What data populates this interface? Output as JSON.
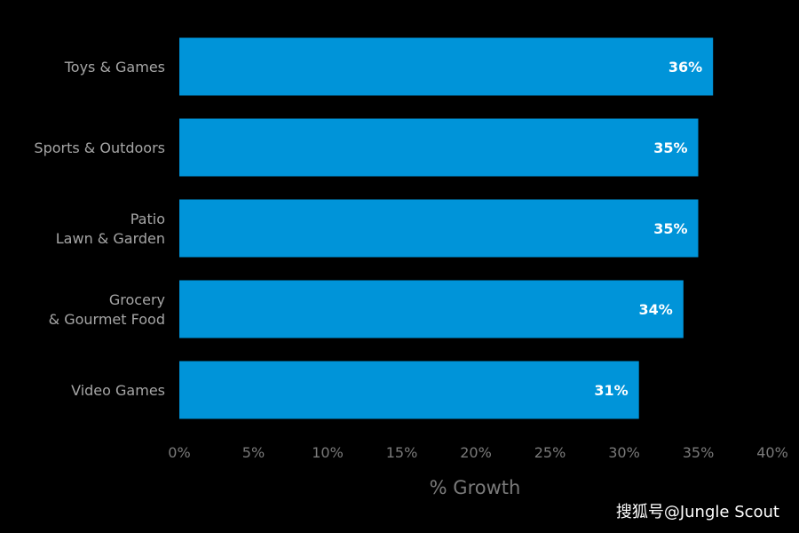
{
  "chart_data": {
    "type": "bar",
    "orientation": "horizontal",
    "categories": [
      "Toys & Games",
      "Sports & Outdoors",
      "Patio\nLawn & Garden",
      "Grocery\n& Gourmet Food",
      "Video Games"
    ],
    "values": [
      36,
      35,
      35,
      34,
      31
    ],
    "value_labels": [
      "36%",
      "35%",
      "35%",
      "34%",
      "31%"
    ],
    "xlabel": "% Growth",
    "xlim": [
      0,
      40
    ],
    "xticks": [
      0,
      5,
      10,
      15,
      20,
      25,
      30,
      35,
      40
    ],
    "xtick_labels": [
      "0%",
      "5%",
      "10%",
      "15%",
      "20%",
      "25%",
      "30%",
      "35%",
      "40%"
    ],
    "grid": false,
    "bar_color": "#0094d9",
    "background": "#000000"
  },
  "watermark": "搜狐号@Jungle Scout"
}
